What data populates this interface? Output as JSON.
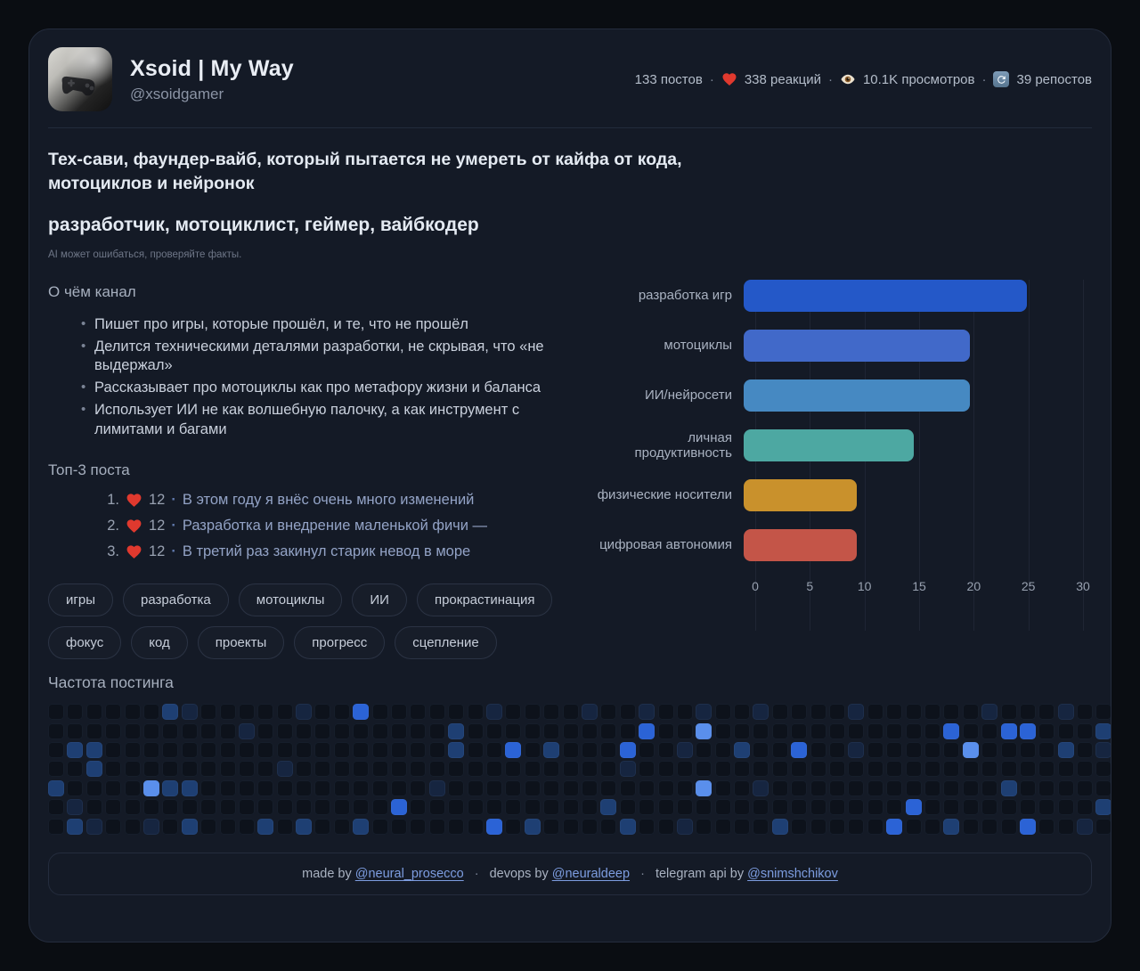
{
  "header": {
    "title": "Xsoid | My Way",
    "handle": "@xsoidgamer",
    "stats": {
      "posts": "133 постов",
      "reactions": "338 реакций",
      "views": "10.1K просмотров",
      "reposts": "39 репостов",
      "separator": "·"
    }
  },
  "bio": {
    "line1": "Тех-сави, фаундер-вайб, который пытается не умереть от кайфа от кода, мотоциклов и нейронок",
    "line2": "разработчик, мотоциклист, геймер, вайбкодер",
    "disclaimer": "AI может ошибаться, проверяйте факты."
  },
  "about": {
    "heading": "О чём канал",
    "items": [
      "Пишет про игры, которые прошёл, и те, что не прошёл",
      "Делится техническими деталями разработки, не скрывая, что «не выдержал»",
      "Рассказывает про мотоциклы как про метафору жизни и баланса",
      "Использует ИИ не как волшебную палочку, а как инструмент с лимитами и багами"
    ]
  },
  "top_posts": {
    "heading": "Топ-3 поста",
    "separator": "·",
    "items": [
      {
        "rank": "1.",
        "reactions": "12",
        "title": "В этом году я внёс очень много изменений"
      },
      {
        "rank": "2.",
        "reactions": "12",
        "title": "Разработка и внедрение маленькой фичи —"
      },
      {
        "rank": "3.",
        "reactions": "12",
        "title": "В третий раз закинул старик невод в море"
      }
    ]
  },
  "tags": [
    "игры",
    "разработка",
    "мотоциклы",
    "ИИ",
    "прокрастинация",
    "фокус",
    "код",
    "проекты",
    "прогресс",
    "сцепление"
  ],
  "chart_data": {
    "type": "bar",
    "orientation": "horizontal",
    "title": "",
    "categories": [
      "разработка игр",
      "мотоциклы",
      "ИИ/нейросети",
      "личная продуктивность",
      "физические носители",
      "цифровая автономия"
    ],
    "values": [
      25,
      20,
      20,
      15,
      10,
      10
    ],
    "colors": [
      "#2458c8",
      "#4169c9",
      "#4689c2",
      "#4da8a2",
      "#c9912c",
      "#c45548"
    ],
    "xlim": [
      0,
      30
    ],
    "xticks": [
      0,
      5,
      10,
      15,
      20,
      25,
      30
    ],
    "grid": true,
    "legend": false
  },
  "heatmap": {
    "heading": "Частота постинга",
    "rows": 7,
    "cols": 56,
    "level_colors": [
      "#0d121b",
      "#162540",
      "#1e3f73",
      "#2b63d6",
      "#5a8fec"
    ],
    "cells": [
      "00000021000001003000000100001001001001000010000001000100",
      "00000000001000000000020000000003004000000000000300330002",
      "02200000000000000000020030200030010020030010000040000201",
      "00200000000010000000000000000010000000000000000000000000",
      "20000422000000000000100000000000004001000000000000200000",
      "01000000000000000030000000000200000000000000030000000002",
      "02100102000202002000000302000020010000200000300200030010"
    ]
  },
  "footer": {
    "made_by": "made by",
    "made_by_link": "@neural_prosecco",
    "devops_by": "devops by",
    "devops_link": "@neuraldeep",
    "api_by": "telegram api by",
    "api_link": "@snimshchikov",
    "separator": "·"
  }
}
